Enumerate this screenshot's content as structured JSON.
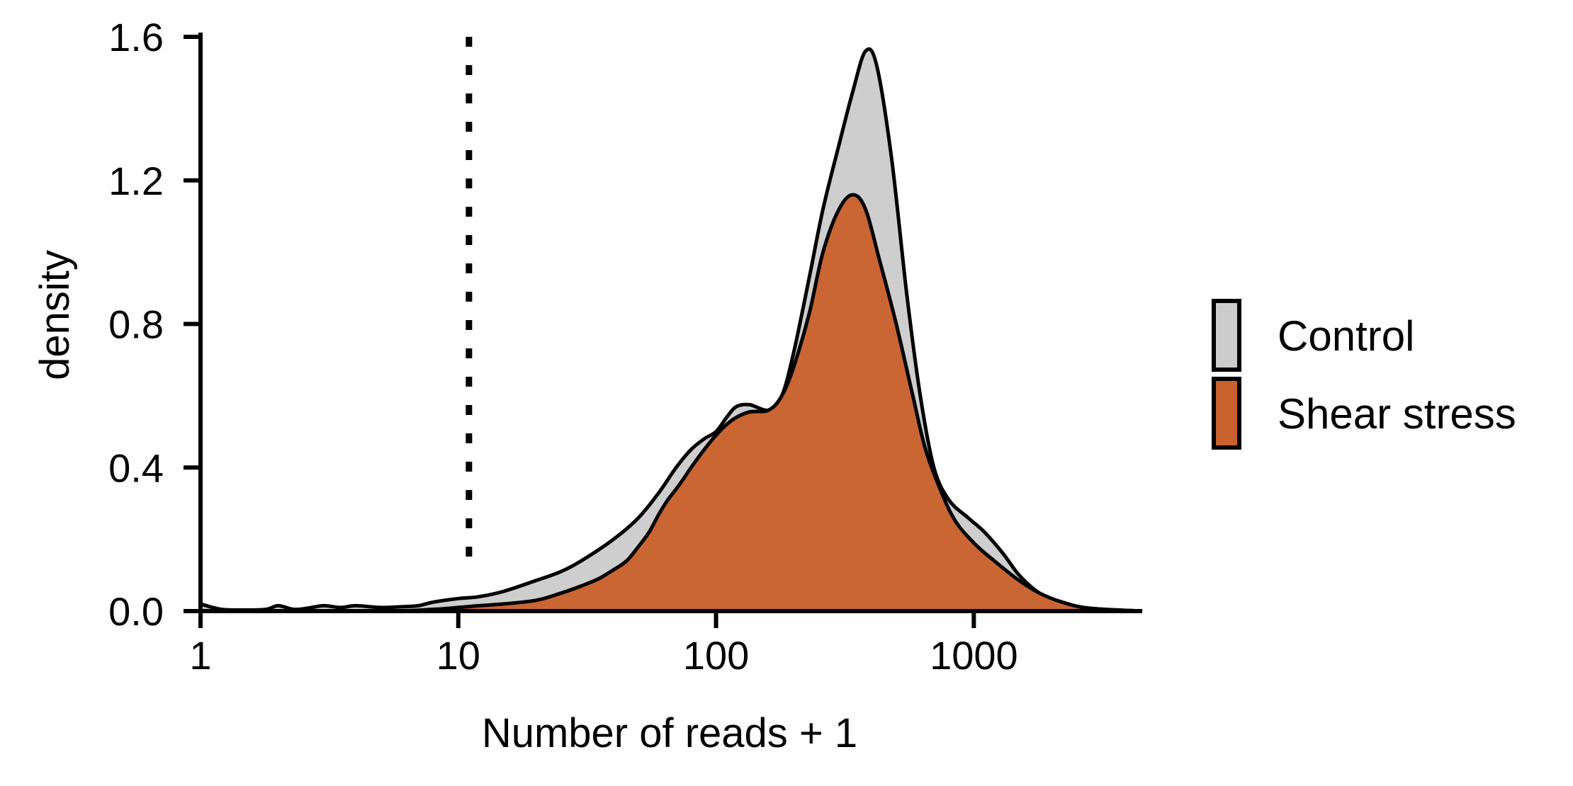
{
  "chart_data": {
    "type": "area",
    "xlabel": "Number of reads + 1",
    "ylabel": "density",
    "x_scale": "log10",
    "xlim": [
      1,
      4500
    ],
    "ylim": [
      0,
      1.6
    ],
    "x_ticks": [
      1,
      10,
      100,
      1000
    ],
    "x_tick_labels": [
      "1",
      "10",
      "100",
      "1000"
    ],
    "y_ticks": [
      0,
      0.4,
      0.8,
      1.2,
      1.6
    ],
    "y_tick_labels": [
      "0.0",
      "0.4",
      "0.8",
      "1.2",
      "1.6"
    ],
    "grid": false,
    "legend_position": "right",
    "reference_line": {
      "orientation": "vertical",
      "style": "dotted",
      "x": 11
    },
    "series": [
      {
        "name": "Control",
        "color": "#cccccc",
        "stroke": "#000000",
        "points": [
          [
            1,
            0.02
          ],
          [
            1.2,
            0.005
          ],
          [
            1.5,
            0.003
          ],
          [
            1.8,
            0.005
          ],
          [
            2,
            0.015
          ],
          [
            2.3,
            0.005
          ],
          [
            2.6,
            0.008
          ],
          [
            3,
            0.015
          ],
          [
            3.5,
            0.01
          ],
          [
            4,
            0.015
          ],
          [
            5,
            0.01
          ],
          [
            6,
            0.012
          ],
          [
            7,
            0.015
          ],
          [
            8,
            0.025
          ],
          [
            10,
            0.035
          ],
          [
            12,
            0.04
          ],
          [
            15,
            0.055
          ],
          [
            20,
            0.085
          ],
          [
            25,
            0.11
          ],
          [
            30,
            0.14
          ],
          [
            40,
            0.2
          ],
          [
            50,
            0.26
          ],
          [
            60,
            0.33
          ],
          [
            70,
            0.4
          ],
          [
            80,
            0.45
          ],
          [
            90,
            0.48
          ],
          [
            100,
            0.5
          ],
          [
            110,
            0.54
          ],
          [
            120,
            0.57
          ],
          [
            135,
            0.575
          ],
          [
            160,
            0.56
          ],
          [
            180,
            0.6
          ],
          [
            200,
            0.72
          ],
          [
            230,
            0.93
          ],
          [
            260,
            1.12
          ],
          [
            300,
            1.3
          ],
          [
            340,
            1.45
          ],
          [
            380,
            1.56
          ],
          [
            420,
            1.52
          ],
          [
            480,
            1.26
          ],
          [
            550,
            0.88
          ],
          [
            620,
            0.6
          ],
          [
            700,
            0.4
          ],
          [
            800,
            0.31
          ],
          [
            950,
            0.26
          ],
          [
            1100,
            0.22
          ],
          [
            1300,
            0.16
          ],
          [
            1500,
            0.1
          ],
          [
            1800,
            0.05
          ],
          [
            2200,
            0.025
          ],
          [
            2800,
            0.008
          ],
          [
            4500,
            0.0
          ]
        ]
      },
      {
        "name": "Shear stress",
        "color": "#c9622e",
        "stroke": "#000000",
        "points": [
          [
            1,
            0.0
          ],
          [
            5,
            0.0
          ],
          [
            8,
            0.005
          ],
          [
            10,
            0.01
          ],
          [
            12,
            0.015
          ],
          [
            15,
            0.02
          ],
          [
            20,
            0.03
          ],
          [
            25,
            0.05
          ],
          [
            30,
            0.07
          ],
          [
            35,
            0.09
          ],
          [
            40,
            0.115
          ],
          [
            45,
            0.14
          ],
          [
            50,
            0.18
          ],
          [
            55,
            0.22
          ],
          [
            60,
            0.27
          ],
          [
            65,
            0.31
          ],
          [
            70,
            0.34
          ],
          [
            75,
            0.37
          ],
          [
            80,
            0.4
          ],
          [
            90,
            0.45
          ],
          [
            100,
            0.49
          ],
          [
            110,
            0.52
          ],
          [
            120,
            0.54
          ],
          [
            135,
            0.555
          ],
          [
            160,
            0.56
          ],
          [
            180,
            0.6
          ],
          [
            200,
            0.68
          ],
          [
            230,
            0.83
          ],
          [
            260,
            1.0
          ],
          [
            300,
            1.12
          ],
          [
            340,
            1.16
          ],
          [
            380,
            1.12
          ],
          [
            430,
            0.98
          ],
          [
            500,
            0.8
          ],
          [
            580,
            0.6
          ],
          [
            650,
            0.45
          ],
          [
            750,
            0.33
          ],
          [
            850,
            0.25
          ],
          [
            1000,
            0.19
          ],
          [
            1200,
            0.14
          ],
          [
            1500,
            0.085
          ],
          [
            1800,
            0.05
          ],
          [
            2200,
            0.025
          ],
          [
            2800,
            0.008
          ],
          [
            4500,
            0.0
          ]
        ]
      }
    ]
  }
}
